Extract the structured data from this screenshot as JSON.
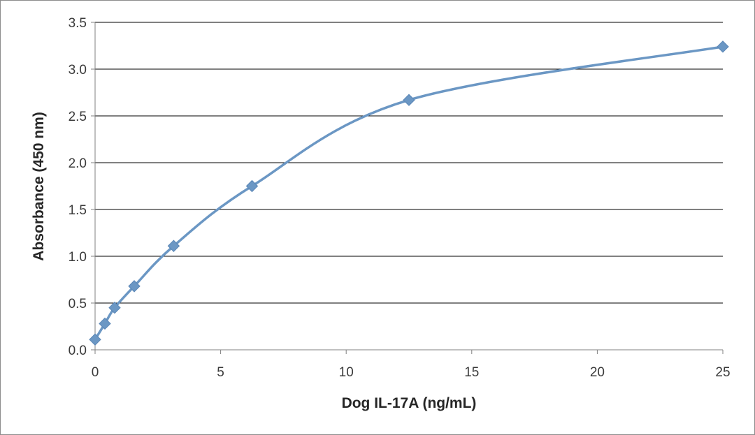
{
  "chart_data": {
    "type": "scatter",
    "xlabel": "Dog IL-17A (ng/mL)",
    "ylabel": "Absorbance  (450  nm)",
    "xlim": [
      0,
      25
    ],
    "ylim": [
      0,
      3.5
    ],
    "xticks": [
      0,
      5,
      10,
      15,
      20,
      25
    ],
    "yticks": [
      0.0,
      0.5,
      1.0,
      1.5,
      2.0,
      2.5,
      3.0,
      3.5
    ],
    "ytick_labels": [
      "0.0",
      "0.5",
      "1.0",
      "1.5",
      "2.0",
      "2.5",
      "3.0",
      "3.5"
    ],
    "grid": "horizontal",
    "legend": "none",
    "series": [
      {
        "marker": "diamond",
        "line": "smooth",
        "color": "#6b97c4",
        "x": [
          0,
          0.39,
          0.78,
          1.56,
          3.13,
          6.25,
          12.5,
          25
        ],
        "y": [
          0.11,
          0.28,
          0.45,
          0.68,
          1.11,
          1.75,
          2.67,
          3.24
        ]
      }
    ]
  }
}
